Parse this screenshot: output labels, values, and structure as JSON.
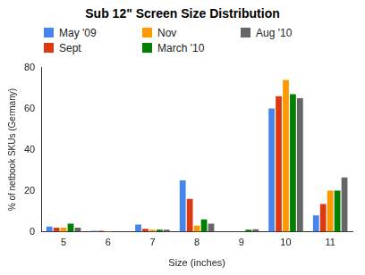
{
  "chart_data": {
    "type": "bar",
    "title": "Sub 12\" Screen Size Distribution",
    "x_label": "Size (inches)",
    "y_label": "% of netbook SKUs (Germany)",
    "categories": [
      "5",
      "6",
      "7",
      "8",
      "9",
      "10",
      "11"
    ],
    "series": [
      {
        "name": "May '09",
        "color": "#4684ee",
        "values": [
          2.5,
          0.5,
          3.5,
          25,
          0,
          60,
          8
        ]
      },
      {
        "name": "Sept",
        "color": "#dc3912",
        "values": [
          2,
          0.5,
          1.5,
          16,
          0,
          66,
          13.5
        ]
      },
      {
        "name": "Nov",
        "color": "#ff9900",
        "values": [
          2,
          0.3,
          1,
          3,
          0,
          74,
          20
        ]
      },
      {
        "name": "March '10",
        "color": "#008000",
        "values": [
          4,
          0,
          1,
          6,
          1,
          67,
          20
        ]
      },
      {
        "name": "Aug '10",
        "color": "#666666",
        "values": [
          2,
          0,
          1,
          4,
          1.2,
          65,
          26.5
        ]
      }
    ],
    "ylim": [
      0,
      80
    ],
    "yticks": [
      0,
      20,
      40,
      60,
      80
    ],
    "grid": false,
    "legend": "top"
  }
}
